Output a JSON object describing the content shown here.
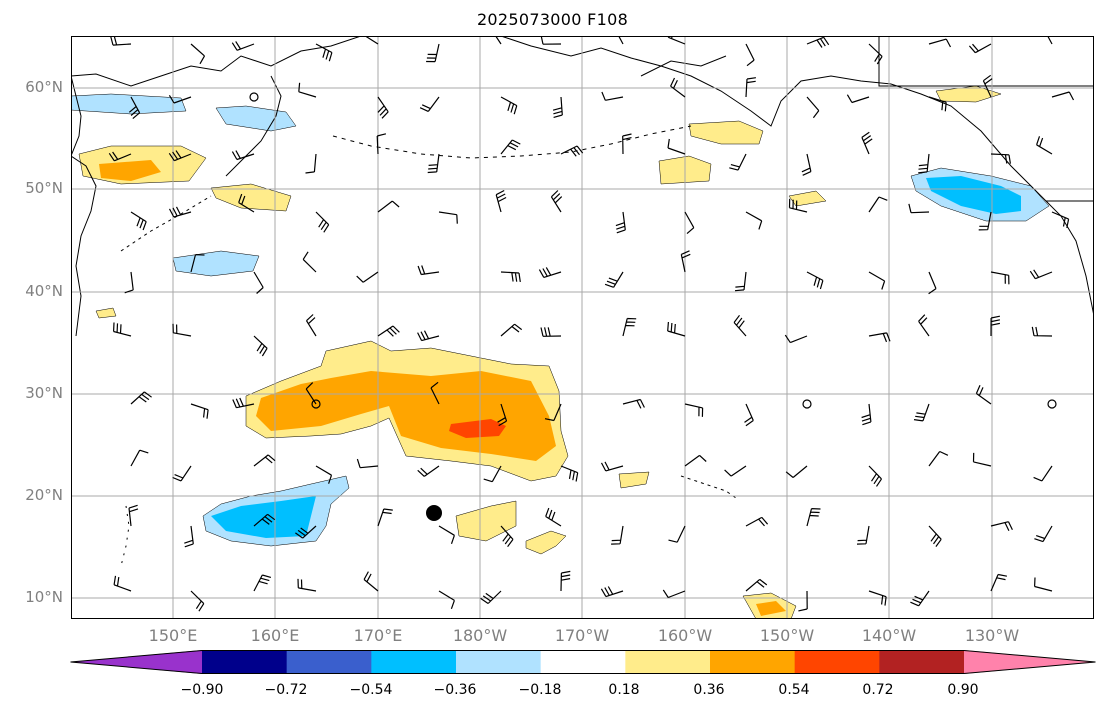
{
  "title": "2025073000 F108",
  "lat_labels": [
    "60°N",
    "50°N",
    "40°N",
    "30°N",
    "20°N",
    "10°N"
  ],
  "lon_labels": [
    "150°E",
    "160°E",
    "170°E",
    "180°W",
    "170°W",
    "160°W",
    "150°W",
    "140°W",
    "130°W"
  ],
  "colorbar": {
    "labels": [
      "−0.90",
      "−0.72",
      "−0.54",
      "−0.36",
      "−0.18",
      "0.18",
      "0.36",
      "0.54",
      "0.72",
      "0.90"
    ],
    "colors": [
      "#9932cc",
      "#00008b",
      "#3a5fcd",
      "#00bfff",
      "#b0e2ff",
      "#ffffff",
      "#ffec8b",
      "#ffa500",
      "#ff4500",
      "#b22222",
      "#ff82ab"
    ]
  },
  "styles": {
    "land_line": "#000000",
    "grid": "#a9a9a9"
  },
  "markers": [
    {
      "name": "storm-center",
      "type": "filled-dot"
    }
  ]
}
